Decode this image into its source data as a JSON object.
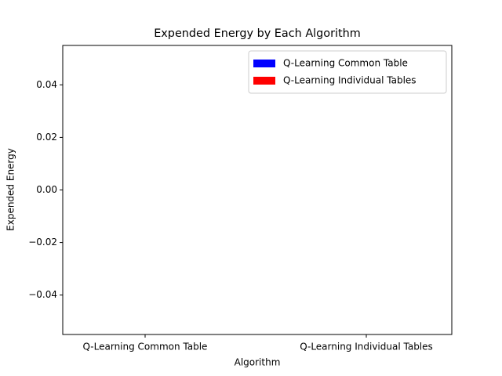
{
  "chart_data": {
    "type": "bar",
    "title": "Expended Energy by Each Algorithm",
    "xlabel": "Algorithm",
    "ylabel": "Expended Energy",
    "categories": [
      "Q-Learning Common Table",
      "Q-Learning Individual Tables"
    ],
    "series": [
      {
        "name": "Q-Learning Common Table",
        "color": "#0000ff",
        "values": [
          0,
          null
        ]
      },
      {
        "name": "Q-Learning Individual Tables",
        "color": "#ff0000",
        "values": [
          null,
          0
        ]
      }
    ],
    "ylim": [
      -0.055,
      0.055
    ],
    "yticks": [
      {
        "value": -0.04,
        "label": "−0.04"
      },
      {
        "value": -0.02,
        "label": "−0.02"
      },
      {
        "value": 0,
        "label": "0.00"
      },
      0.02,
      0.04
    ],
    "legend": "upper right"
  }
}
